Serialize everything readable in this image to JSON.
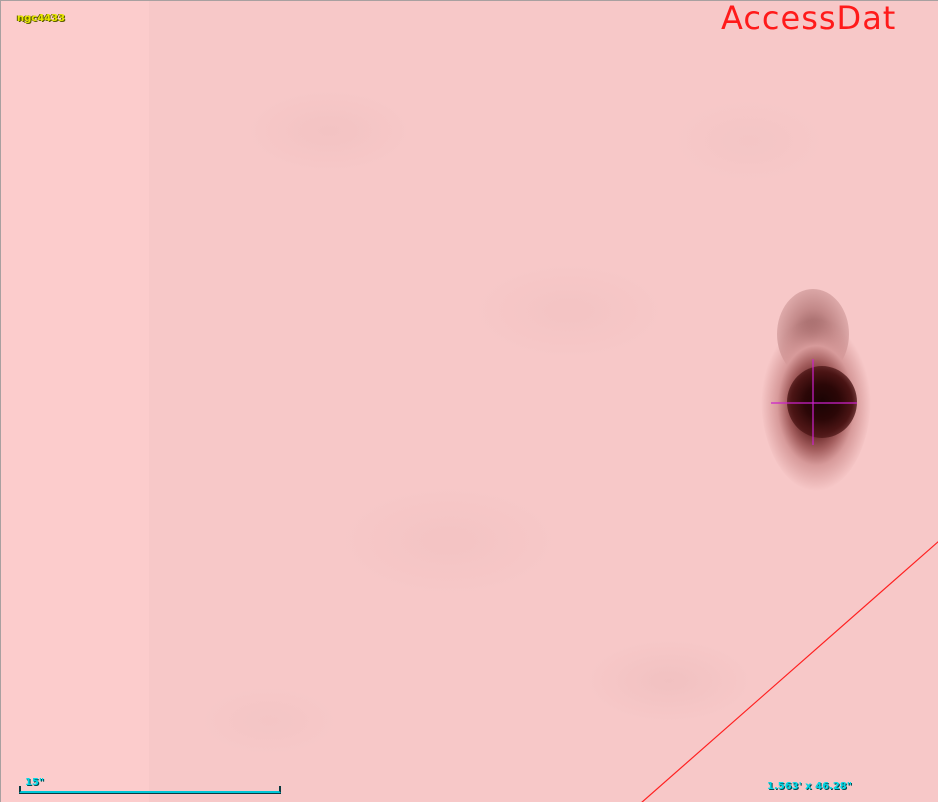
{
  "viewer": {
    "object_name": "ngc4433",
    "watermark": "AccessDat",
    "scale_label": "15\"",
    "fov_label": "1.563' x 46.28\""
  },
  "colors": {
    "background": "#f7c8c8",
    "left_strip": "#fccccc",
    "source": "#2a0808",
    "reticle": "#cc22cc",
    "footprint_line": "#ff2020",
    "object_label": "#e6e600",
    "scale_label": "#00d8e6",
    "watermark": "#ff1a1a"
  },
  "icons": {
    "reticle": "crosshair-icon"
  }
}
